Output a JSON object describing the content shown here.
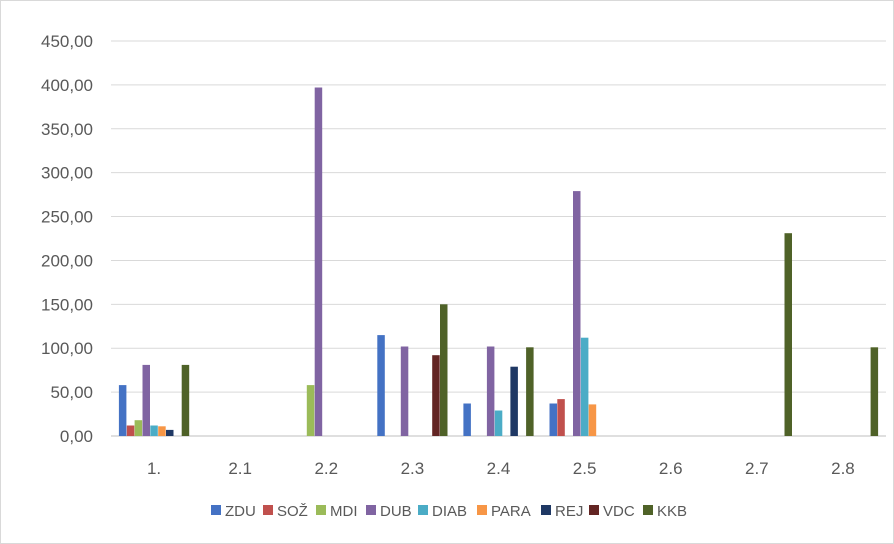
{
  "chart_data": {
    "type": "bar",
    "title": "",
    "xlabel": "",
    "ylabel": "",
    "ylim": [
      0,
      450
    ],
    "y_ticks": [
      "0,00",
      "50,00",
      "100,00",
      "150,00",
      "200,00",
      "250,00",
      "300,00",
      "350,00",
      "400,00",
      "450,00"
    ],
    "categories": [
      "1.",
      "2.1",
      "2.2",
      "2.3",
      "2.4",
      "2.5",
      "2.6",
      "2.7",
      "2.8"
    ],
    "grid": true,
    "legend_position": "bottom",
    "series": [
      {
        "name": "ZDU",
        "color": "#4472c4",
        "values": [
          58,
          0,
          0,
          115,
          37,
          37,
          0,
          0,
          0
        ]
      },
      {
        "name": "SOŽ",
        "color": "#c0504d",
        "values": [
          12,
          0,
          0,
          0,
          0,
          42,
          0,
          0,
          0
        ]
      },
      {
        "name": "MDI",
        "color": "#9bbb59",
        "values": [
          18,
          0,
          58,
          0,
          0,
          0,
          0,
          0,
          0
        ]
      },
      {
        "name": "DUB",
        "color": "#8064a2",
        "values": [
          81,
          0,
          397,
          102,
          102,
          279,
          0,
          0,
          0
        ]
      },
      {
        "name": "DIAB",
        "color": "#4bacc6",
        "values": [
          12,
          0,
          0,
          0,
          29,
          112,
          0,
          0,
          0
        ]
      },
      {
        "name": "PARA",
        "color": "#f79646",
        "values": [
          11,
          0,
          0,
          0,
          0,
          36,
          0,
          0,
          0
        ]
      },
      {
        "name": "REJ",
        "color": "#1f3864",
        "values": [
          7,
          0,
          0,
          0,
          79,
          0,
          0,
          0,
          0
        ]
      },
      {
        "name": "VDC",
        "color": "#632523",
        "values": [
          0,
          0,
          0,
          92,
          0,
          0,
          0,
          0,
          0
        ]
      },
      {
        "name": "KKB",
        "color": "#4f6228",
        "values": [
          81,
          0,
          0,
          150,
          101,
          0,
          0,
          231,
          101
        ]
      }
    ]
  }
}
